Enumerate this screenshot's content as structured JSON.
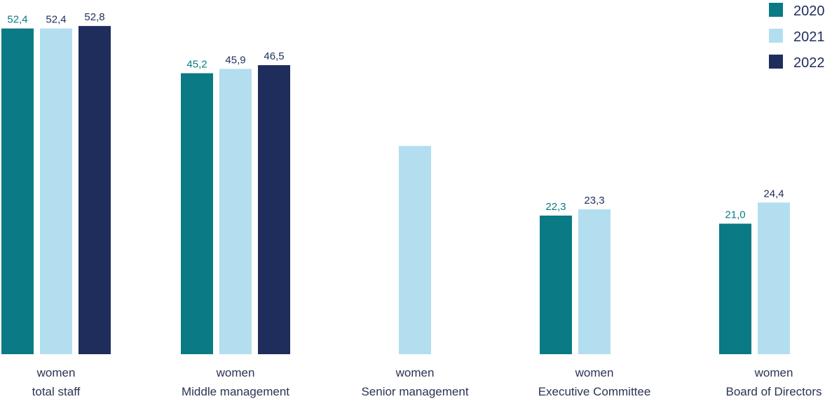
{
  "chart_data": {
    "type": "bar",
    "title": "",
    "xlabel": "",
    "ylabel": "",
    "ylim": [
      0,
      55
    ],
    "grid": false,
    "legend_position": "top-right",
    "categories": [
      {
        "line1": "women",
        "line2": "total staff"
      },
      {
        "line1": "women",
        "line2": "Middle management"
      },
      {
        "line1": "women",
        "line2": "Senior management"
      },
      {
        "line1": "women",
        "line2": "Executive Committee"
      },
      {
        "line1": "women",
        "line2": "Board of Directors"
      }
    ],
    "series": [
      {
        "name": "2020",
        "color": "#0a7a84",
        "label_color": "#0a7a84",
        "values": [
          52.4,
          45.2,
          null,
          22.3,
          21.0
        ],
        "labels": [
          "52,4",
          "45,2",
          "",
          "22,3",
          "21,0"
        ]
      },
      {
        "name": "2021",
        "color": "#b2def0",
        "label_color": "#1f2d5c",
        "values": [
          52.4,
          45.9,
          33.5,
          23.3,
          24.4
        ],
        "labels": [
          "52,4",
          "45,9",
          "",
          "23,3",
          "24,4"
        ]
      },
      {
        "name": "2022",
        "color": "#1f2d5c",
        "label_color": "#1f2d5c",
        "values": [
          52.8,
          46.5,
          null,
          null,
          null
        ],
        "labels": [
          "52,8",
          "46,5",
          "",
          "",
          ""
        ]
      }
    ]
  }
}
